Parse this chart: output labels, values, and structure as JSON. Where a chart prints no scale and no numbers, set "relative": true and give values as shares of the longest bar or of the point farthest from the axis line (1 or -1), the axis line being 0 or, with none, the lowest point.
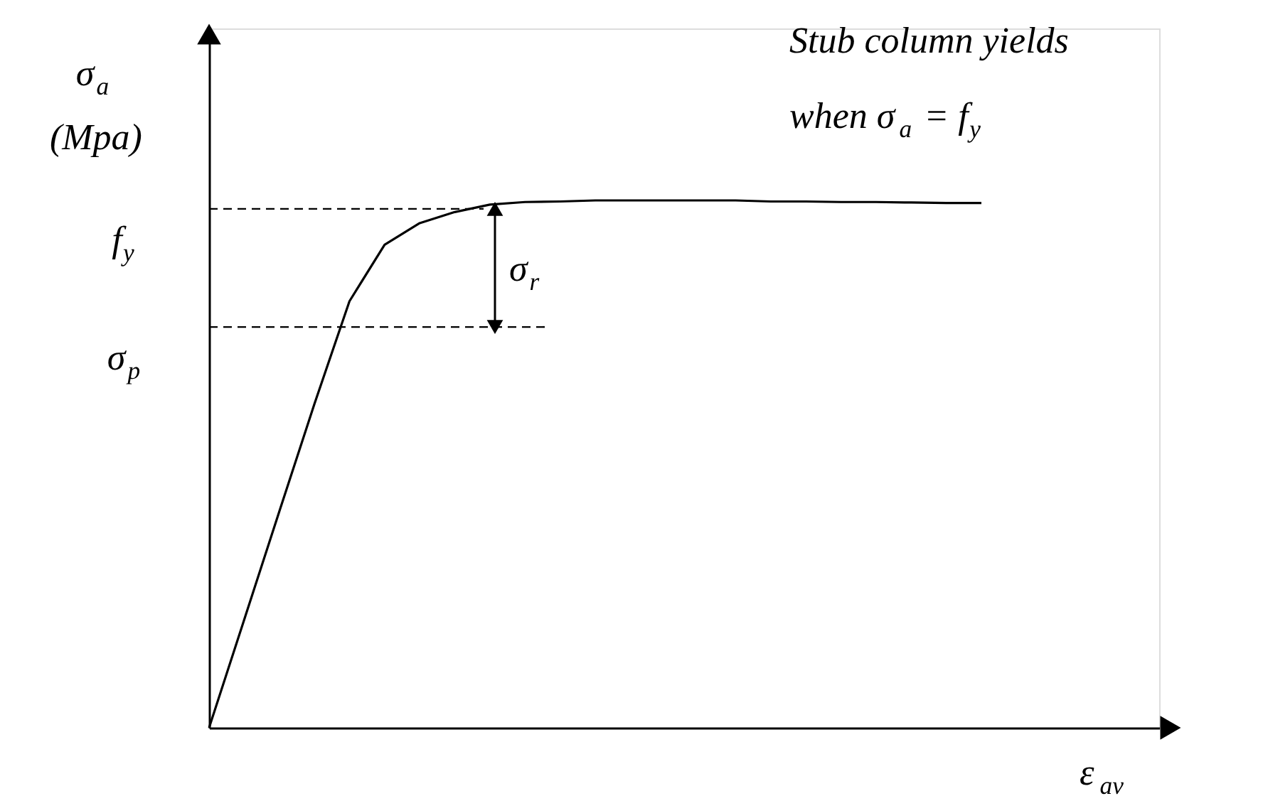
{
  "chart_data": {
    "type": "line",
    "relative": true,
    "ylabel": "σ$_{a}$ (Mpa)",
    "xlabel": "ε$_{av}$",
    "categories": [
      null,
      null,
      null,
      null,
      null,
      null,
      null,
      null,
      null,
      null,
      null,
      null,
      null,
      null,
      null,
      null,
      null,
      null,
      null,
      null,
      null,
      null,
      null
    ],
    "series": [
      {
        "color": "#000000",
        "values": [
          0,
          0.205,
          0.41,
          0.614,
          0.809,
          0.916,
          0.957,
          0.978,
          0.992,
          0.997,
          0.998,
          1.0,
          1.0,
          1.0,
          1.0,
          1.0,
          0.998,
          0.998,
          0.997,
          0.997,
          0.996,
          0.995,
          0.995
        ]
      }
    ],
    "ref_lines": [
      {
        "axis": "y",
        "value": 0.984,
        "label": "f$_{y}$",
        "color": "#000000",
        "line_style": "dashed"
      },
      {
        "axis": "y",
        "value": 0.76,
        "label": "σ$_{p}$",
        "color": "#000000",
        "line_style": "dashed"
      }
    ],
    "annotations": [
      "σ$_{r}$",
      "Stub column yields when σ$_{a}$ = f$_{y}$"
    ],
    "grid": false,
    "marker": "none",
    "line_style": "solid"
  }
}
